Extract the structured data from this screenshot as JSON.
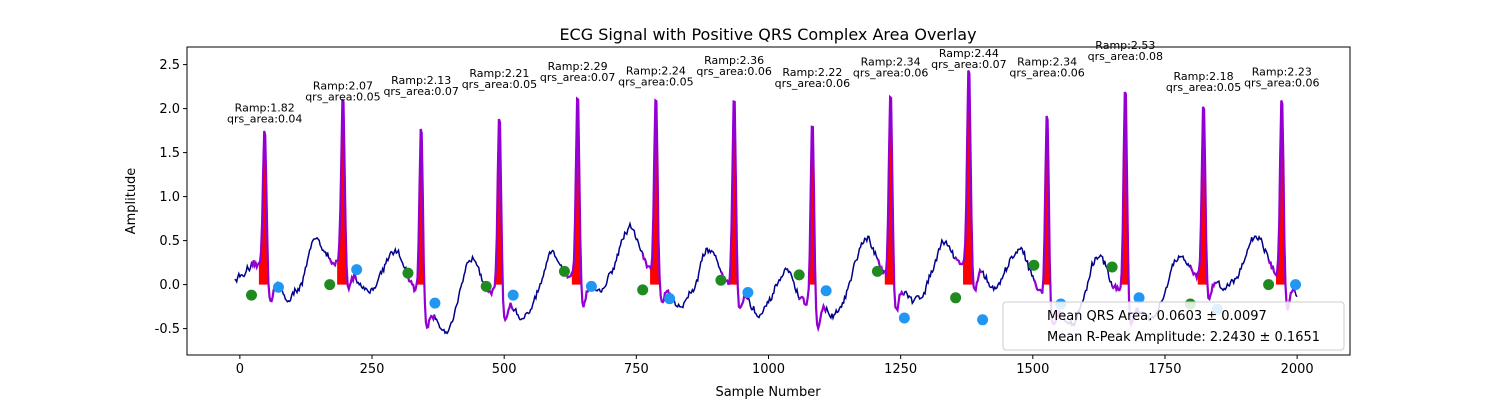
{
  "chart_data": {
    "type": "line",
    "title": "ECG Signal with Positive QRS Complex Area Overlay",
    "xlabel": "Sample Number",
    "ylabel": "Amplitude",
    "xlim": [
      -100,
      2100
    ],
    "ylim": [
      -0.8,
      2.7
    ],
    "xticks": [
      0,
      250,
      500,
      750,
      1000,
      1250,
      1500,
      1750,
      2000
    ],
    "yticks": [
      -0.5,
      0.0,
      0.5,
      1.0,
      1.5,
      2.0,
      2.5
    ],
    "grid": false,
    "colors": {
      "signal": "#00008b",
      "qrs_segment": "#9400d3",
      "area_fill": "#ff0000",
      "q_point": "#1f8a1f",
      "s_point": "#2196f3"
    },
    "beats": [
      {
        "r_x": 47,
        "r_amp": 1.82,
        "qrs_area": 0.04,
        "q": [
          22,
          -0.12
        ],
        "s": [
          73,
          -0.03
        ],
        "label_1": "Ramp:1.82",
        "label_2": "qrs_area:0.04"
      },
      {
        "r_x": 195,
        "r_amp": 2.07,
        "qrs_area": 0.05,
        "q": [
          170,
          0.0
        ],
        "s": [
          221,
          0.17
        ],
        "label_1": "Ramp:2.07",
        "label_2": "qrs_area:0.05"
      },
      {
        "r_x": 343,
        "r_amp": 2.13,
        "qrs_area": 0.07,
        "q": [
          318,
          0.13
        ],
        "s": [
          369,
          -0.21
        ],
        "label_1": "Ramp:2.13",
        "label_2": "qrs_area:0.07"
      },
      {
        "r_x": 491,
        "r_amp": 2.21,
        "qrs_area": 0.05,
        "q": [
          466,
          -0.02
        ],
        "s": [
          517,
          -0.12
        ],
        "label_1": "Ramp:2.21",
        "label_2": "qrs_area:0.05"
      },
      {
        "r_x": 639,
        "r_amp": 2.29,
        "qrs_area": 0.07,
        "q": [
          614,
          0.15
        ],
        "s": [
          665,
          -0.02
        ],
        "label_1": "Ramp:2.29",
        "label_2": "qrs_area:0.07"
      },
      {
        "r_x": 787,
        "r_amp": 2.24,
        "qrs_area": 0.05,
        "q": [
          762,
          -0.06
        ],
        "s": [
          813,
          -0.16
        ],
        "label_1": "Ramp:2.24",
        "label_2": "qrs_area:0.05"
      },
      {
        "r_x": 935,
        "r_amp": 2.36,
        "qrs_area": 0.06,
        "q": [
          910,
          0.05
        ],
        "s": [
          961,
          -0.09
        ],
        "label_1": "Ramp:2.36",
        "label_2": "qrs_area:0.06"
      },
      {
        "r_x": 1083,
        "r_amp": 2.22,
        "qrs_area": 0.06,
        "q": [
          1058,
          0.11
        ],
        "s": [
          1109,
          -0.07
        ],
        "label_1": "Ramp:2.22",
        "label_2": "qrs_area:0.06"
      },
      {
        "r_x": 1231,
        "r_amp": 2.34,
        "qrs_area": 0.06,
        "q": [
          1206,
          0.15
        ],
        "s": [
          1257,
          -0.38
        ],
        "label_1": "Ramp:2.34",
        "label_2": "qrs_area:0.06"
      },
      {
        "r_x": 1379,
        "r_amp": 2.44,
        "qrs_area": 0.07,
        "q": [
          1354,
          -0.15
        ],
        "s": [
          1405,
          -0.4
        ],
        "label_1": "Ramp:2.44",
        "label_2": "qrs_area:0.07"
      },
      {
        "r_x": 1527,
        "r_amp": 2.34,
        "qrs_area": 0.06,
        "q": [
          1502,
          0.22
        ],
        "s": [
          1553,
          -0.22
        ],
        "label_1": "Ramp:2.34",
        "label_2": "qrs_area:0.06"
      },
      {
        "r_x": 1675,
        "r_amp": 2.53,
        "qrs_area": 0.08,
        "q": [
          1650,
          0.2
        ],
        "s": [
          1701,
          -0.15
        ],
        "label_1": "Ramp:2.53",
        "label_2": "qrs_area:0.08"
      },
      {
        "r_x": 1823,
        "r_amp": 2.18,
        "qrs_area": 0.05,
        "q": [
          1798,
          -0.22
        ],
        "s": [
          1849,
          -0.28
        ],
        "label_1": "Ramp:2.18",
        "label_2": "qrs_area:0.05"
      },
      {
        "r_x": 1971,
        "r_amp": 2.23,
        "qrs_area": 0.06,
        "q": [
          1946,
          0.0
        ],
        "s": [
          1997,
          0.0
        ],
        "label_1": "Ramp:2.23",
        "label_2": "qrs_area:0.06"
      }
    ],
    "legend": {
      "position": "lower-right",
      "entries": [
        "Mean QRS Area: 0.0603 ± 0.0097",
        "Mean R-Peak Amplitude: 2.2430 ± 0.1651"
      ]
    }
  }
}
